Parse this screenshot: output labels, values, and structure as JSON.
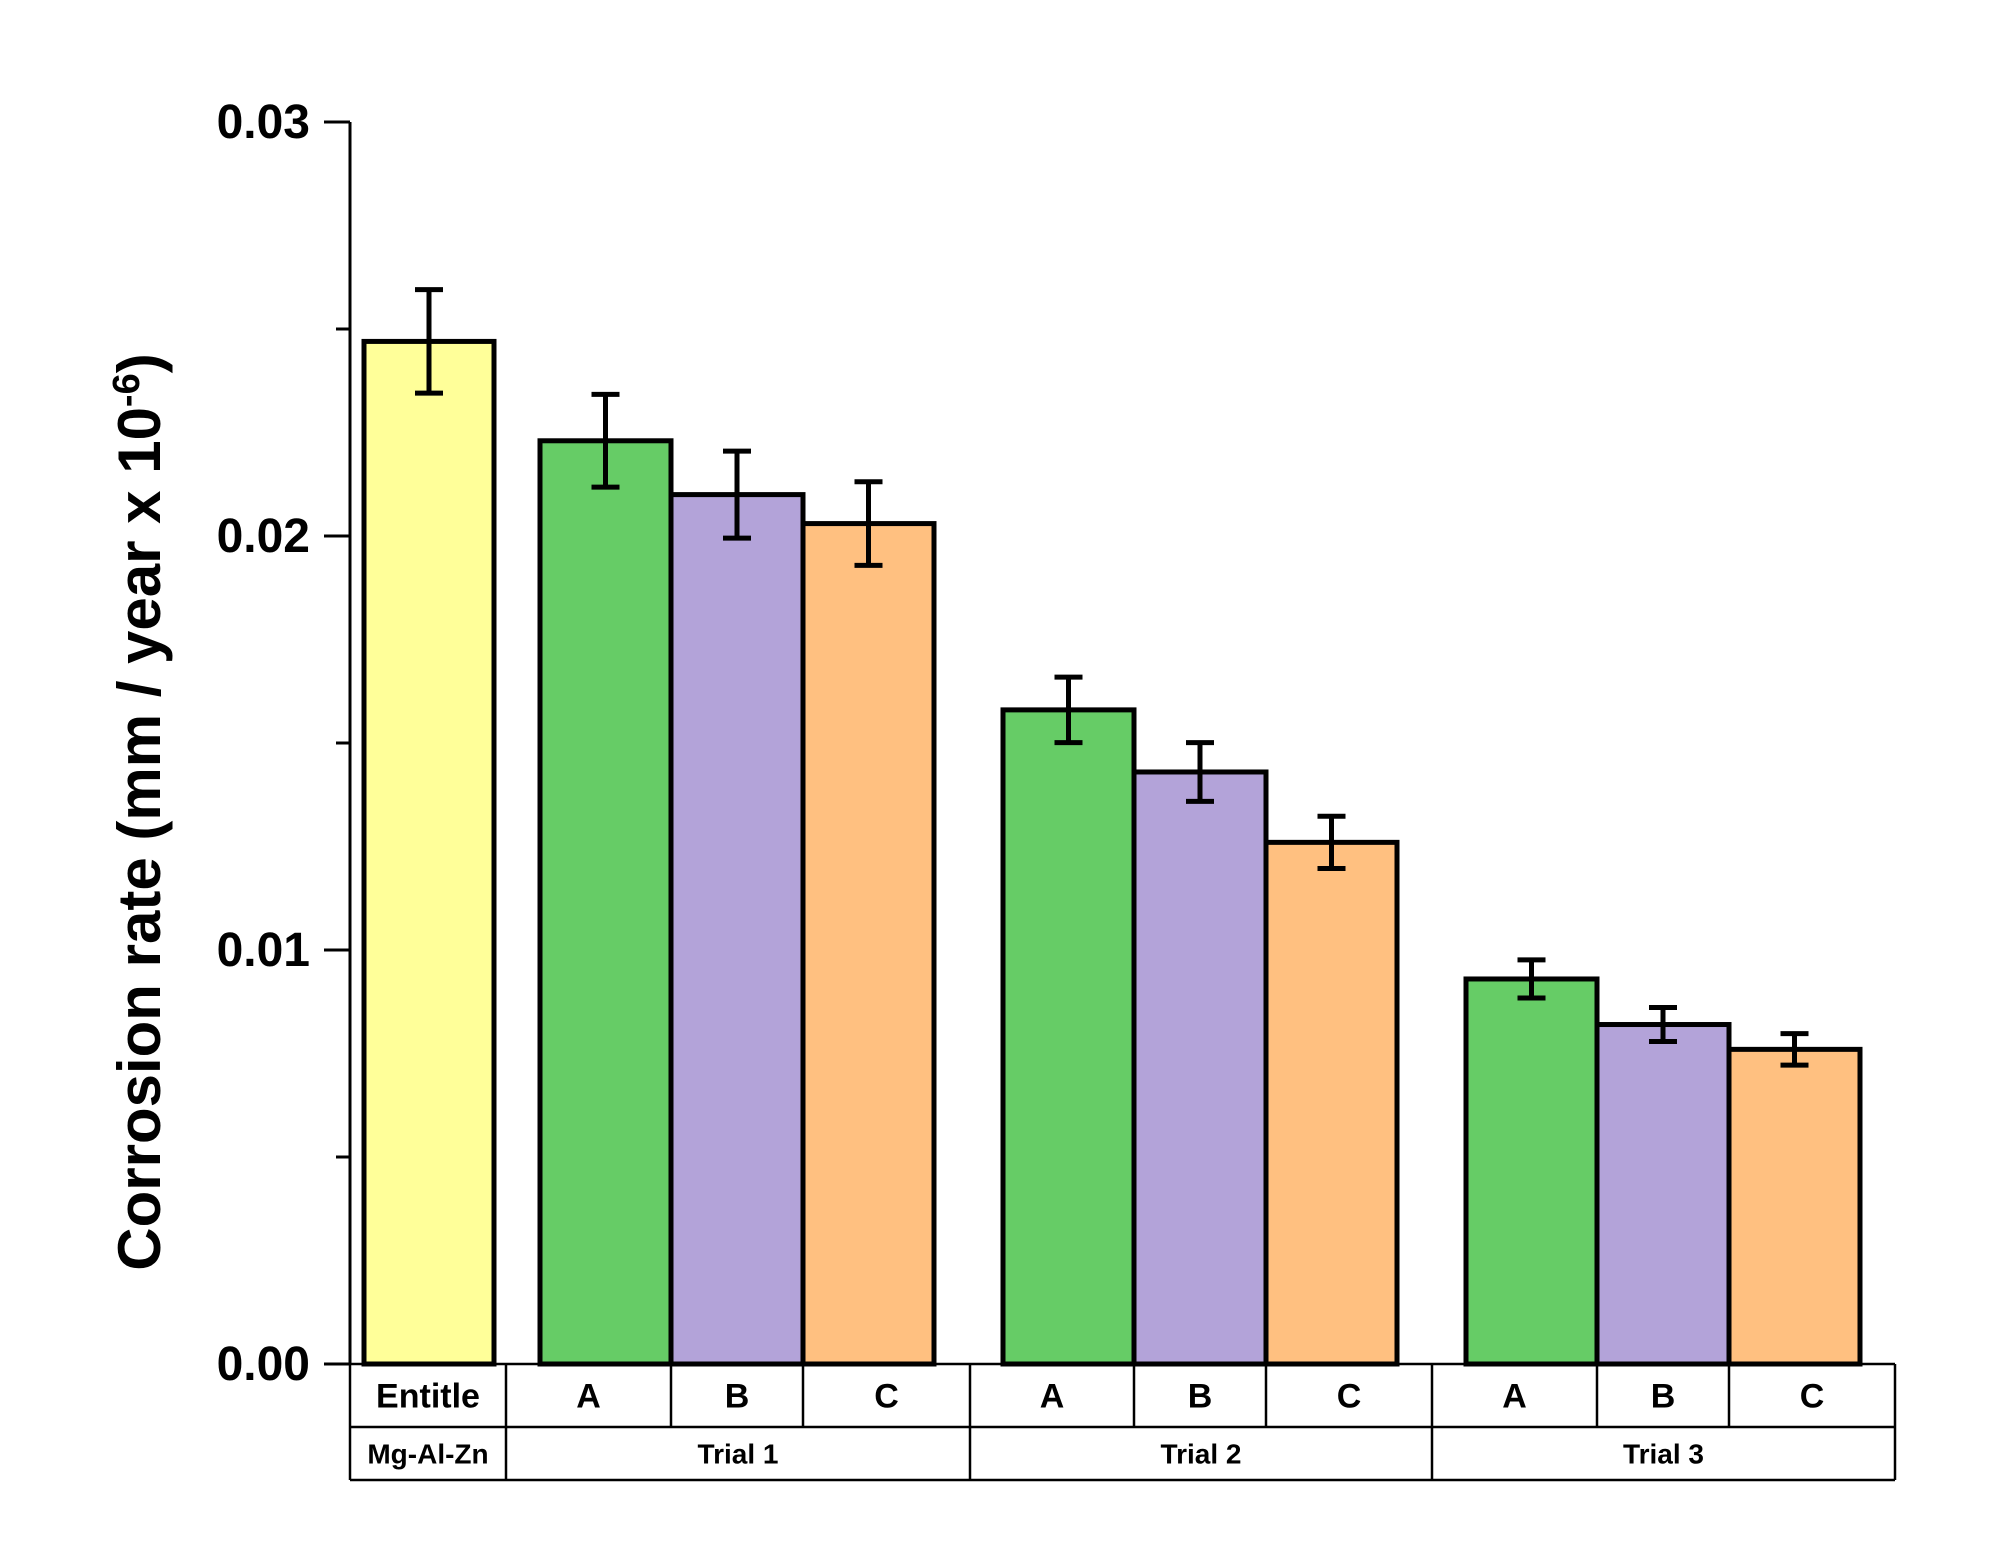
{
  "chart_data": {
    "type": "bar",
    "title": "",
    "xlabel": "",
    "ylabel_main": "Corrosion rate (mm / year x 10",
    "ylabel_exp": "-6",
    "ylabel_close": ")",
    "ylim": [
      0,
      0.03
    ],
    "yticks": [
      {
        "value": 0.0,
        "label": "0.00"
      },
      {
        "value": 0.01,
        "label": "0.01"
      },
      {
        "value": 0.02,
        "label": "0.02"
      },
      {
        "value": 0.03,
        "label": "0.03"
      }
    ],
    "yminor": [
      0.005,
      0.015,
      0.025
    ],
    "grid": false,
    "legend": "none",
    "bars": [
      {
        "category": "Entitle",
        "group": "Mg-Al-Zn",
        "value": 0.0247,
        "error": 0.00125,
        "color": "#ffff99"
      },
      {
        "category": "A",
        "group": "Trial 1",
        "value": 0.0223,
        "error": 0.00112,
        "color": "#66cc66"
      },
      {
        "category": "B",
        "group": "Trial 1",
        "value": 0.021,
        "error": 0.00105,
        "color": "#b3a3d9"
      },
      {
        "category": "C",
        "group": "Trial 1",
        "value": 0.0203,
        "error": 0.00101,
        "color": "#ffc080"
      },
      {
        "category": "A",
        "group": "Trial 2",
        "value": 0.0158,
        "error": 0.00079,
        "color": "#66cc66"
      },
      {
        "category": "B",
        "group": "Trial 2",
        "value": 0.0143,
        "error": 0.00071,
        "color": "#b3a3d9"
      },
      {
        "category": "C",
        "group": "Trial 2",
        "value": 0.0126,
        "error": 0.00063,
        "color": "#ffc080"
      },
      {
        "category": "A",
        "group": "Trial 3",
        "value": 0.0093,
        "error": 0.00046,
        "color": "#66cc66"
      },
      {
        "category": "B",
        "group": "Trial 3",
        "value": 0.0082,
        "error": 0.00041,
        "color": "#b3a3d9"
      },
      {
        "category": "C",
        "group": "Trial 3",
        "value": 0.0076,
        "error": 0.00038,
        "color": "#ffc080"
      }
    ],
    "groups": [
      "Mg-Al-Zn",
      "Trial 1",
      "Trial 2",
      "Trial 3"
    ]
  }
}
